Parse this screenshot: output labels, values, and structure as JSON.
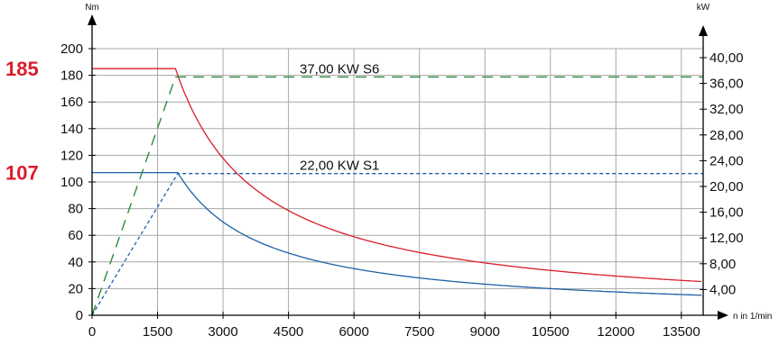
{
  "chart_data": {
    "type": "line",
    "y_left": {
      "label": "Nm",
      "range": [
        0,
        200
      ],
      "ticks": [
        0,
        20,
        40,
        60,
        80,
        100,
        120,
        140,
        160,
        180,
        200
      ]
    },
    "y_right": {
      "label": "kW",
      "range": [
        0,
        40
      ],
      "ticks": [
        "4,00",
        "8,00",
        "12,00",
        "16,00",
        "20,00",
        "24,00",
        "28,00",
        "32,00",
        "36,00",
        "40,00"
      ]
    },
    "x": {
      "label": "n in 1/min",
      "range": [
        0,
        14000
      ],
      "ticks": [
        0,
        1500,
        3000,
        4500,
        6000,
        7500,
        9000,
        10500,
        12000,
        13500
      ]
    },
    "grid": true,
    "markers": [
      {
        "text": "185",
        "value": 185,
        "color": "#d81e2a"
      },
      {
        "text": "107",
        "value": 107,
        "color": "#d81e2a"
      }
    ],
    "series": [
      {
        "name": "37,00 KW S6",
        "kind": "torque",
        "color": "#d81e2a",
        "corner_speed": 1910,
        "torque_max": 185,
        "x_end": 14000
      },
      {
        "name": "22,00 KW S1",
        "kind": "torque",
        "color": "#1f5fa8",
        "corner_speed": 1963,
        "torque_max": 107,
        "x_end": 14000
      },
      {
        "kind": "power",
        "style": "long-dash",
        "color": "#2e8b3a",
        "power": 37,
        "corner_speed": 1910,
        "x_end": 14000
      },
      {
        "kind": "power",
        "style": "short-dash",
        "color": "#1f5fa8",
        "power": 22,
        "corner_speed": 1963,
        "x_end": 14000
      }
    ]
  }
}
